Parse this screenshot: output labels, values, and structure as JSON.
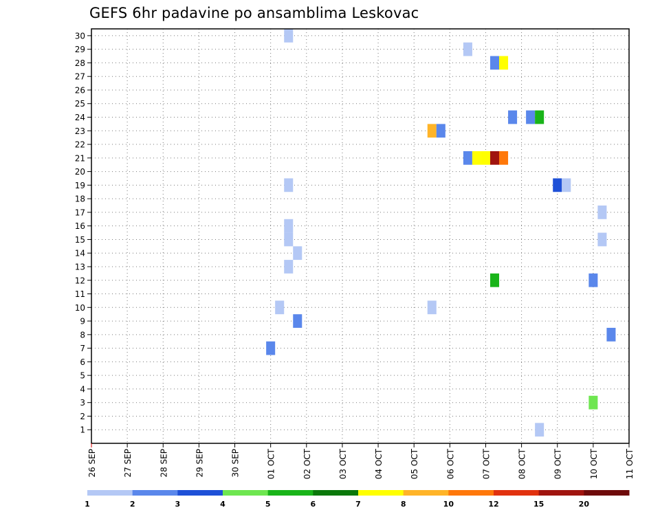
{
  "chart_data": {
    "type": "heatmap",
    "title": "GEFS 6hr padavine po ansamblima Leskovac",
    "xlabel": "",
    "ylabel": "",
    "x_tick_labels": [
      "26 SEP",
      "27 SEP",
      "28 SEP",
      "29 SEP",
      "30 SEP",
      "01 OCT",
      "02 OCT",
      "03 OCT",
      "04 OCT",
      "05 OCT",
      "06 OCT",
      "07 OCT",
      "08 OCT",
      "09 OCT",
      "10 OCT",
      "11 OCT"
    ],
    "xlim_days": [
      0,
      15
    ],
    "y_tick_labels": [
      "1",
      "2",
      "3",
      "4",
      "5",
      "6",
      "7",
      "8",
      "9",
      "10",
      "11",
      "12",
      "13",
      "14",
      "15",
      "16",
      "17",
      "18",
      "19",
      "20",
      "21",
      "22",
      "23",
      "24",
      "25",
      "26",
      "27",
      "28",
      "29",
      "30"
    ],
    "ylim": [
      0,
      30
    ],
    "grid": true,
    "colorbar": {
      "labels": [
        "1",
        "2",
        "3",
        "4",
        "5",
        "6",
        "7",
        "8",
        "10",
        "12",
        "15",
        "20"
      ],
      "colors": [
        "#b4c8f5",
        "#5a87eb",
        "#1e50d7",
        "#6ee650",
        "#19b419",
        "#0a780a",
        "#ffff00",
        "#ffb428",
        "#ff780a",
        "#e1320f",
        "#a0140f",
        "#6e0a0a"
      ]
    },
    "cells": [
      {
        "day": 5.5,
        "member": 30,
        "color": "#b4c8f5"
      },
      {
        "day": 10.5,
        "member": 29,
        "color": "#b4c8f5"
      },
      {
        "day": 11.25,
        "member": 28,
        "color": "#5a87eb"
      },
      {
        "day": 11.5,
        "member": 28,
        "color": "#ffff00"
      },
      {
        "day": 11.75,
        "member": 24,
        "color": "#5a87eb"
      },
      {
        "day": 12.25,
        "member": 24,
        "color": "#5a87eb"
      },
      {
        "day": 12.5,
        "member": 24,
        "color": "#19b419"
      },
      {
        "day": 9.5,
        "member": 23,
        "color": "#ffb428"
      },
      {
        "day": 9.75,
        "member": 23,
        "color": "#5a87eb"
      },
      {
        "day": 10.5,
        "member": 21,
        "color": "#5a87eb"
      },
      {
        "day": 10.75,
        "member": 21,
        "color": "#ffff00"
      },
      {
        "day": 11.0,
        "member": 21,
        "color": "#ffff00"
      },
      {
        "day": 11.25,
        "member": 21,
        "color": "#a0140f"
      },
      {
        "day": 11.5,
        "member": 21,
        "color": "#ff780a"
      },
      {
        "day": 13.0,
        "member": 19,
        "color": "#1e50d7"
      },
      {
        "day": 13.25,
        "member": 19,
        "color": "#b4c8f5"
      },
      {
        "day": 5.5,
        "member": 19,
        "color": "#b4c8f5"
      },
      {
        "day": 14.25,
        "member": 17,
        "color": "#b4c8f5"
      },
      {
        "day": 5.5,
        "member": 16,
        "color": "#b4c8f5"
      },
      {
        "day": 5.5,
        "member": 15,
        "color": "#b4c8f5"
      },
      {
        "day": 14.25,
        "member": 15,
        "color": "#b4c8f5"
      },
      {
        "day": 5.75,
        "member": 14,
        "color": "#b4c8f5"
      },
      {
        "day": 5.5,
        "member": 13,
        "color": "#b4c8f5"
      },
      {
        "day": 11.25,
        "member": 12,
        "color": "#19b419"
      },
      {
        "day": 14.0,
        "member": 12,
        "color": "#5a87eb"
      },
      {
        "day": 5.25,
        "member": 10,
        "color": "#b4c8f5"
      },
      {
        "day": 9.5,
        "member": 10,
        "color": "#b4c8f5"
      },
      {
        "day": 5.75,
        "member": 9,
        "color": "#5a87eb"
      },
      {
        "day": 14.5,
        "member": 8,
        "color": "#5a87eb"
      },
      {
        "day": 5.0,
        "member": 7,
        "color": "#5a87eb"
      },
      {
        "day": 14.0,
        "member": 3,
        "color": "#6ee650"
      },
      {
        "day": 12.5,
        "member": 1,
        "color": "#b4c8f5"
      }
    ]
  }
}
